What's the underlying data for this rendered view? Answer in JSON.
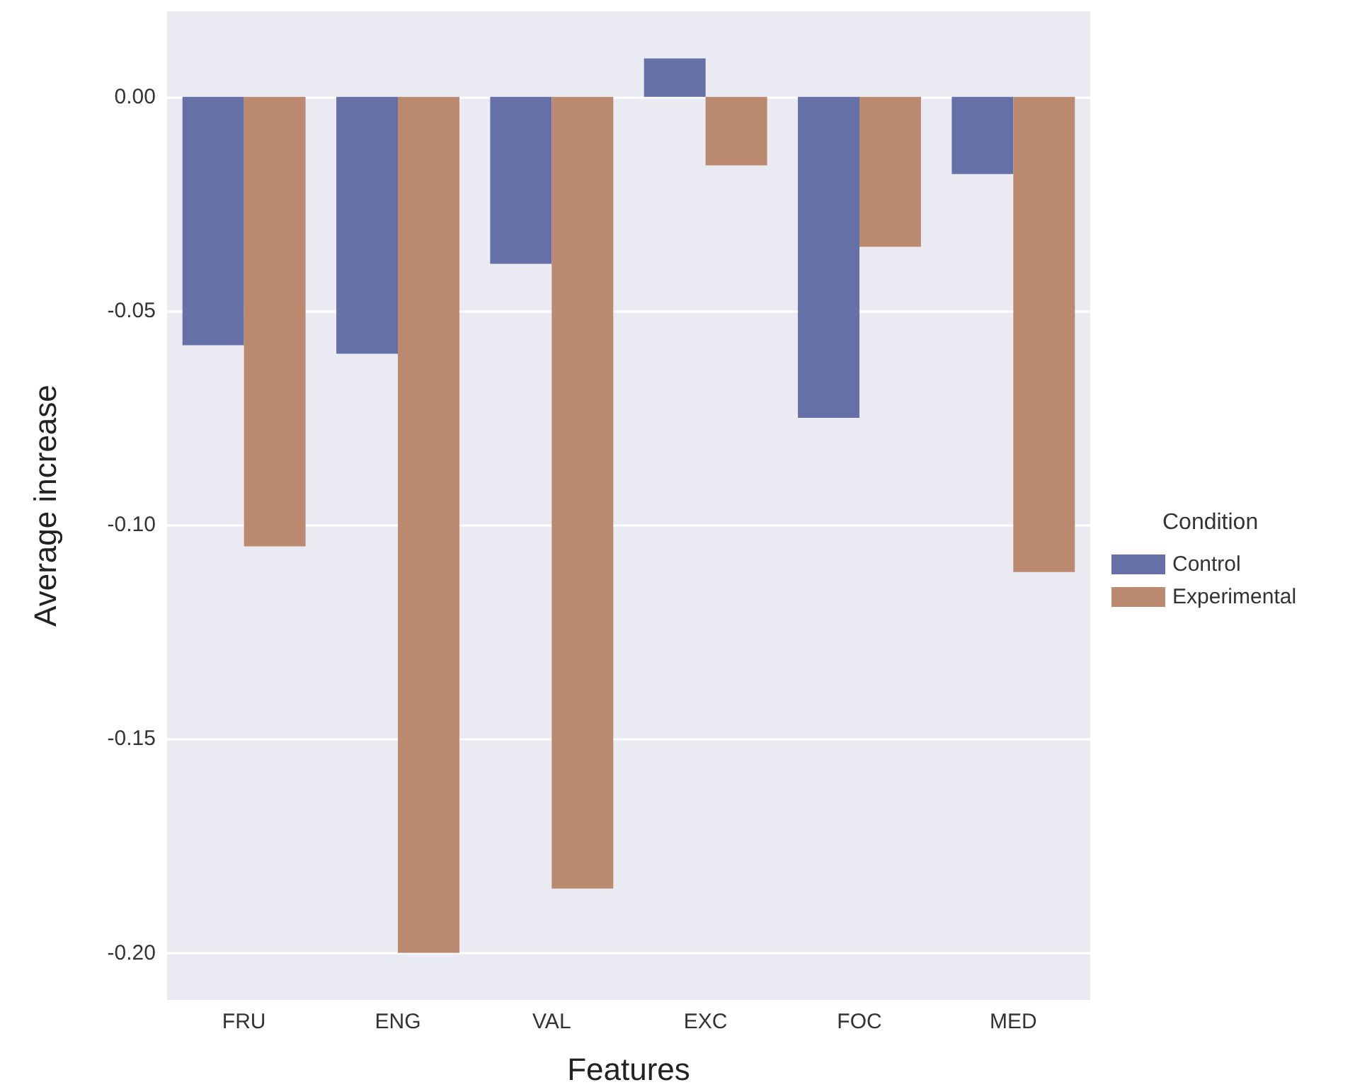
{
  "chart_data": {
    "type": "bar",
    "xlabel": "Features",
    "ylabel": "Average increase",
    "legend_title": "Condition",
    "legend": "right",
    "categories": [
      "FRU",
      "ENG",
      "VAL",
      "EXC",
      "FOC",
      "MED"
    ],
    "series": [
      {
        "name": "Control",
        "color": "#6470a6",
        "values": [
          -0.058,
          -0.06,
          -0.039,
          0.009,
          -0.075,
          -0.018
        ]
      },
      {
        "name": "Experimental",
        "color": "#bb8870",
        "values": [
          -0.105,
          -0.2,
          -0.185,
          -0.016,
          -0.035,
          -0.111
        ]
      }
    ],
    "ylim": [
      -0.211,
      0.02
    ],
    "yticks": [
      {
        "value": -0.2,
        "label": "-0.20"
      },
      {
        "value": -0.15,
        "label": "-0.15"
      },
      {
        "value": -0.1,
        "label": "-0.10"
      },
      {
        "value": -0.05,
        "label": "-0.05"
      },
      {
        "value": 0,
        "label": "0.00"
      }
    ],
    "grid": "y"
  }
}
